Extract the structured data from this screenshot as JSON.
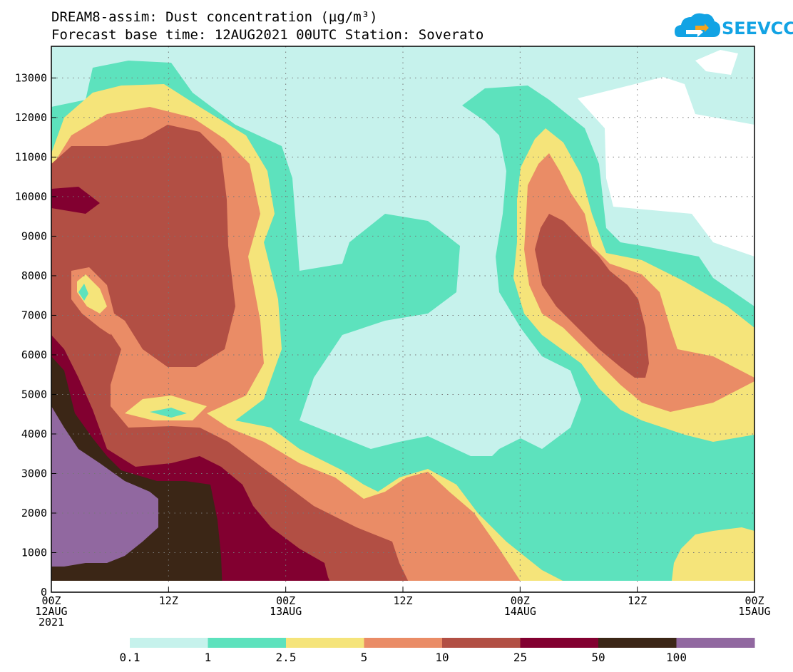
{
  "chart_data": {
    "type": "heatmap",
    "title": "DREAM8-assim: Dust concentration (µg/m³)",
    "subtitle": "Forecast base time: 12AUG2021 00UTC  Station: Soverato",
    "y_ticks": [
      0,
      1000,
      2000,
      3000,
      4000,
      5000,
      6000,
      7000,
      8000,
      9000,
      10000,
      11000,
      12000,
      13000
    ],
    "y_range": [
      0,
      13800
    ],
    "x_range_hours": [
      0,
      72
    ],
    "x_ticks": [
      {
        "hours": 0,
        "lines": [
          "00Z",
          "12AUG",
          "2021"
        ]
      },
      {
        "hours": 12,
        "lines": [
          "12Z"
        ]
      },
      {
        "hours": 24,
        "lines": [
          "00Z",
          "13AUG"
        ]
      },
      {
        "hours": 36,
        "lines": [
          "12Z"
        ]
      },
      {
        "hours": 48,
        "lines": [
          "00Z",
          "14AUG"
        ]
      },
      {
        "hours": 60,
        "lines": [
          "12Z"
        ]
      },
      {
        "hours": 72,
        "lines": [
          "00Z",
          "15AUG"
        ]
      }
    ],
    "grid": true,
    "levels": [
      "0.1",
      "1",
      "2.5",
      "5",
      "10",
      "25",
      "50",
      "100"
    ],
    "level_colors": [
      "#c6f2ec",
      "#5de2bd",
      "#f5e47a",
      "#ea8c66",
      "#b24f44",
      "#820030",
      "#3b2616",
      "#9168a0"
    ]
  },
  "logo": {
    "text": "SEEVCCC",
    "color": "#12a3e4",
    "accent": "#f6a31c"
  }
}
